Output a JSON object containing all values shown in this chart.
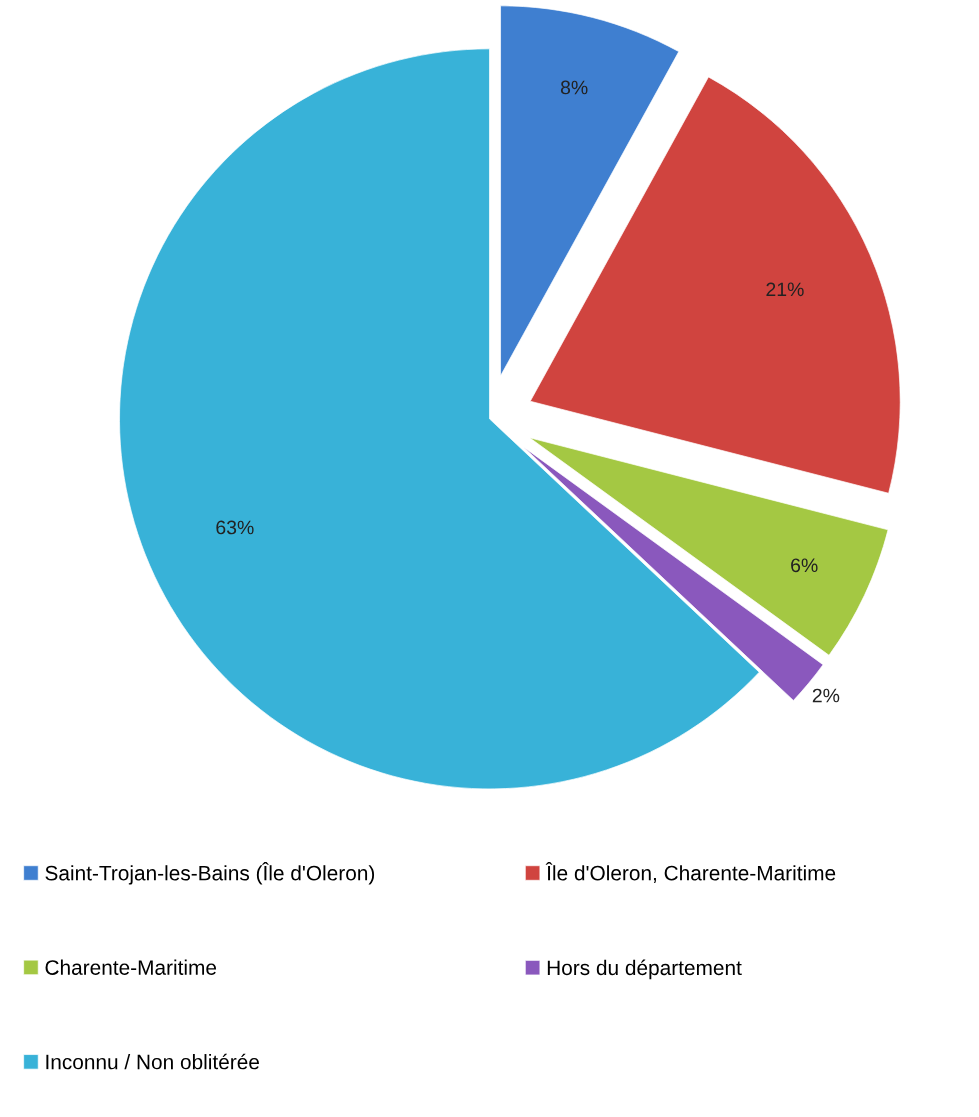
{
  "chart_data": {
    "type": "pie",
    "categories": [
      "Saint-Trojan-les-Bains (Île d'Oleron)",
      "Île d'Oleron, Charente-Maritime",
      "Charente-Maritime",
      "Hors du département",
      "Inconnu / Non oblitérée"
    ],
    "values": [
      8,
      21,
      6,
      2,
      63
    ],
    "colors": [
      "#3f7fd0",
      "#d0443f",
      "#a4c843",
      "#8a58bd",
      "#38b2d8"
    ],
    "value_labels": [
      "8%",
      "21%",
      "6%",
      "2%",
      "63%"
    ],
    "legend": "bottom"
  }
}
